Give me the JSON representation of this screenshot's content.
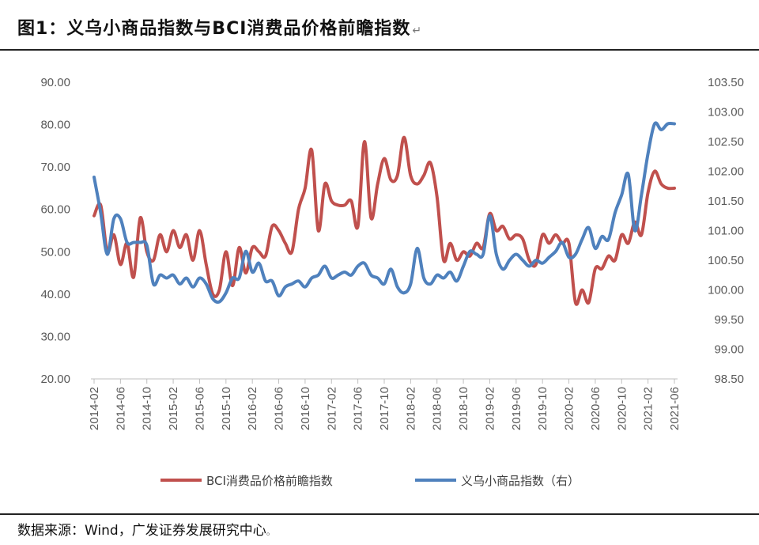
{
  "header": {
    "title": "图1：义乌小商品指数与BCI消费品价格前瞻指数",
    "title_mark": "↵"
  },
  "footer": {
    "source": "数据来源：Wind，广发证券发展研究中心",
    "source_mark": "。"
  },
  "colors": {
    "bci": "#C0504D",
    "yiwu": "#4F81BD",
    "axis": "#BFBFBF",
    "tick_text": "#595959"
  },
  "chart_data": {
    "type": "line",
    "title": "",
    "xlabel": "",
    "ylabel": "",
    "y_left": {
      "lim": [
        20,
        90
      ],
      "ticks": [
        "90.00",
        "80.00",
        "70.00",
        "60.00",
        "50.00",
        "40.00",
        "30.00",
        "20.00"
      ]
    },
    "y_right": {
      "lim": [
        98.5,
        103.5
      ],
      "ticks": [
        "103.50",
        "103.00",
        "102.50",
        "102.00",
        "101.50",
        "101.00",
        "100.50",
        "100.00",
        "99.50",
        "99.00",
        "98.50"
      ]
    },
    "x_tick_labels": [
      "2014-02",
      "2014-06",
      "2014-10",
      "2015-02",
      "2015-06",
      "2015-10",
      "2016-02",
      "2016-06",
      "2016-10",
      "2017-02",
      "2017-06",
      "2017-10",
      "2018-02",
      "2018-06",
      "2018-10",
      "2019-02",
      "2019-06",
      "2019-10",
      "2020-02",
      "2020-06",
      "2020-10",
      "2021-02",
      "2021-06"
    ],
    "grid": false,
    "legend_position": "bottom",
    "series": [
      {
        "name": "BCI消费品价格前瞻指数",
        "axis": "left",
        "x": [
          "2014-02",
          "2014-03",
          "2014-04",
          "2014-05",
          "2014-06",
          "2014-07",
          "2014-08",
          "2014-09",
          "2014-10",
          "2014-11",
          "2014-12",
          "2015-01",
          "2015-02",
          "2015-03",
          "2015-04",
          "2015-05",
          "2015-06",
          "2015-07",
          "2015-08",
          "2015-09",
          "2015-10",
          "2015-11",
          "2015-12",
          "2016-01",
          "2016-02",
          "2016-03",
          "2016-04",
          "2016-05",
          "2016-06",
          "2016-07",
          "2016-08",
          "2016-09",
          "2016-10",
          "2016-11",
          "2016-12",
          "2017-01",
          "2017-02",
          "2017-03",
          "2017-04",
          "2017-05",
          "2017-06",
          "2017-07",
          "2017-08",
          "2017-09",
          "2017-10",
          "2017-11",
          "2017-12",
          "2018-01",
          "2018-02",
          "2018-03",
          "2018-04",
          "2018-05",
          "2018-06",
          "2018-07",
          "2018-08",
          "2018-09",
          "2018-10",
          "2018-11",
          "2018-12",
          "2019-01",
          "2019-02",
          "2019-03",
          "2019-04",
          "2019-05",
          "2019-06",
          "2019-07",
          "2019-08",
          "2019-09",
          "2019-10",
          "2019-11",
          "2019-12",
          "2020-01",
          "2020-02",
          "2020-03",
          "2020-04",
          "2020-05",
          "2020-06",
          "2020-07",
          "2020-08",
          "2020-09",
          "2020-10",
          "2020-11",
          "2020-12",
          "2021-01",
          "2021-02",
          "2021-03",
          "2021-04",
          "2021-05",
          "2021-06"
        ],
        "values": [
          58.5,
          61,
          50,
          54,
          47,
          52,
          44,
          58,
          50,
          48,
          54,
          50,
          55,
          51,
          54,
          48,
          55,
          47,
          40,
          41,
          50,
          42,
          51,
          45,
          51,
          50,
          49,
          56,
          55,
          52,
          50,
          60,
          65,
          74,
          55,
          66,
          62,
          61,
          61,
          62,
          56,
          76,
          58,
          66,
          72,
          67,
          68,
          77,
          68,
          66,
          68,
          71,
          63,
          48,
          52,
          48,
          50,
          49,
          52,
          51,
          59,
          55,
          56,
          53,
          54,
          53,
          48,
          47,
          54,
          52,
          54,
          52,
          52,
          38,
          41,
          38,
          46,
          46,
          49,
          48,
          54,
          52,
          57,
          54,
          64,
          69,
          66,
          65,
          65
        ]
      },
      {
        "name": "义乌小商品指数（右）",
        "axis": "right",
        "x": [
          "2014-02",
          "2014-03",
          "2014-04",
          "2014-05",
          "2014-06",
          "2014-07",
          "2014-08",
          "2014-09",
          "2014-10",
          "2014-11",
          "2014-12",
          "2015-01",
          "2015-02",
          "2015-03",
          "2015-04",
          "2015-05",
          "2015-06",
          "2015-07",
          "2015-08",
          "2015-09",
          "2015-10",
          "2015-11",
          "2015-12",
          "2016-01",
          "2016-02",
          "2016-03",
          "2016-04",
          "2016-05",
          "2016-06",
          "2016-07",
          "2016-08",
          "2016-09",
          "2016-10",
          "2016-11",
          "2016-12",
          "2017-01",
          "2017-02",
          "2017-03",
          "2017-04",
          "2017-05",
          "2017-06",
          "2017-07",
          "2017-08",
          "2017-09",
          "2017-10",
          "2017-11",
          "2017-12",
          "2018-01",
          "2018-02",
          "2018-03",
          "2018-04",
          "2018-05",
          "2018-06",
          "2018-07",
          "2018-08",
          "2018-09",
          "2018-10",
          "2018-11",
          "2018-12",
          "2019-01",
          "2019-02",
          "2019-03",
          "2019-04",
          "2019-05",
          "2019-06",
          "2019-07",
          "2019-08",
          "2019-09",
          "2019-10",
          "2019-11",
          "2019-12",
          "2020-01",
          "2020-02",
          "2020-03",
          "2020-04",
          "2020-05",
          "2020-06",
          "2020-07",
          "2020-08",
          "2020-09",
          "2020-10",
          "2020-11",
          "2020-12",
          "2021-01",
          "2021-02",
          "2021-03",
          "2021-04",
          "2021-05",
          "2021-06"
        ],
        "values": [
          101.9,
          101.3,
          100.6,
          101.2,
          101.2,
          100.8,
          100.8,
          100.8,
          100.75,
          100.1,
          100.25,
          100.2,
          100.25,
          100.1,
          100.2,
          100.05,
          100.2,
          100.1,
          99.85,
          99.8,
          99.95,
          100.2,
          100.2,
          100.65,
          100.3,
          100.45,
          100.15,
          100.15,
          99.9,
          100.05,
          100.1,
          100.15,
          100.05,
          100.2,
          100.25,
          100.4,
          100.2,
          100.25,
          100.3,
          100.25,
          100.4,
          100.45,
          100.25,
          100.2,
          100.1,
          100.35,
          100.05,
          99.95,
          100.1,
          100.7,
          100.2,
          100.1,
          100.25,
          100.2,
          100.3,
          100.15,
          100.4,
          100.65,
          100.6,
          100.6,
          101.25,
          100.6,
          100.35,
          100.5,
          100.6,
          100.5,
          100.4,
          100.5,
          100.45,
          100.55,
          100.65,
          100.8,
          100.55,
          100.6,
          100.85,
          101.05,
          100.7,
          100.9,
          100.85,
          101.3,
          101.6,
          101.95,
          101.0,
          101.6,
          102.3,
          102.8,
          102.7,
          102.8,
          102.8
        ]
      }
    ]
  }
}
